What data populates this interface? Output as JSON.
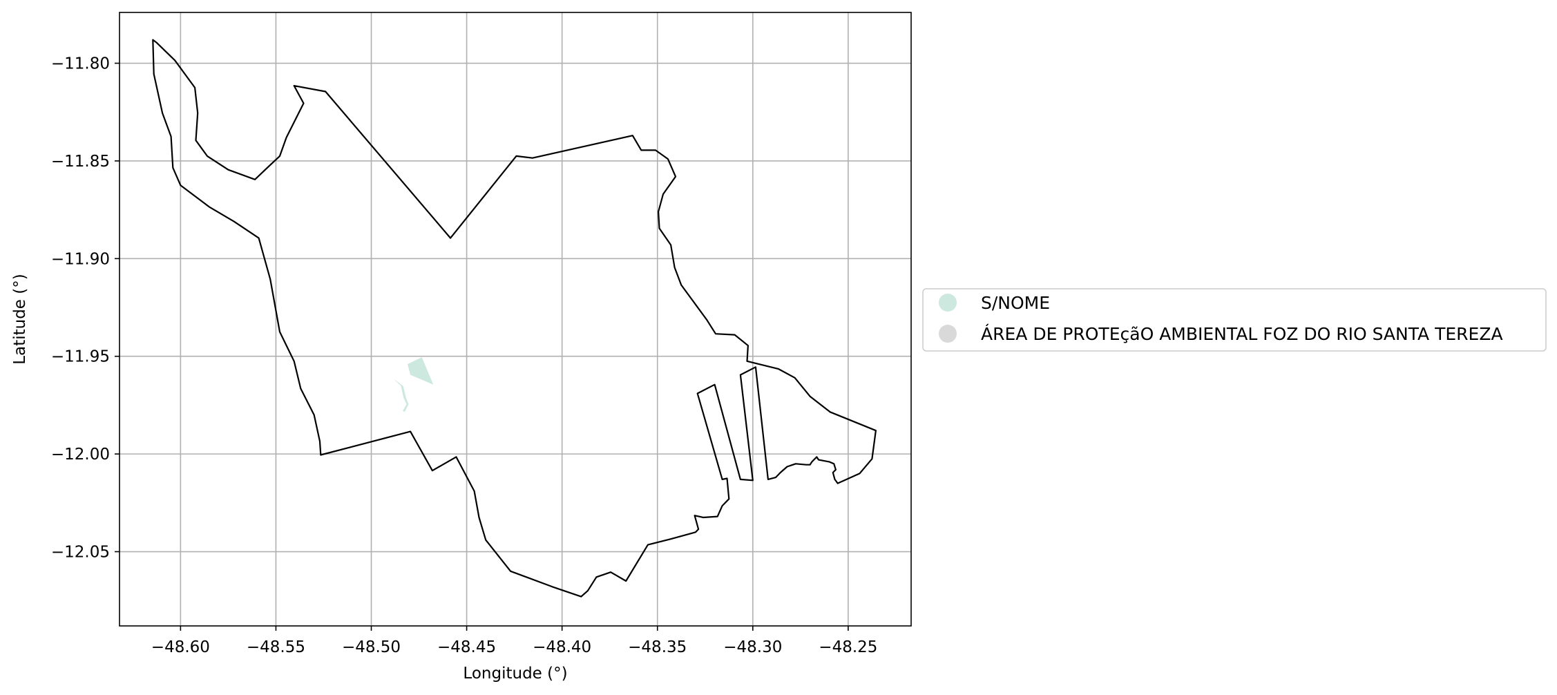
{
  "chart_data": {
    "type": "map",
    "xlabel": "Longitude (°)",
    "ylabel": "Latitude (°)",
    "xlim": [
      -48.632,
      -48.217
    ],
    "ylim": [
      -12.088,
      -11.774
    ],
    "grid": true,
    "xticks": [
      {
        "value": -48.6,
        "label": "−48.60"
      },
      {
        "value": -48.55,
        "label": "−48.55"
      },
      {
        "value": -48.5,
        "label": "−48.50"
      },
      {
        "value": -48.45,
        "label": "−48.45"
      },
      {
        "value": -48.4,
        "label": "−48.40"
      },
      {
        "value": -48.35,
        "label": "−48.35"
      },
      {
        "value": -48.3,
        "label": "−48.30"
      },
      {
        "value": -48.25,
        "label": "−48.25"
      }
    ],
    "yticks": [
      {
        "value": -11.8,
        "label": "−11.80"
      },
      {
        "value": -11.85,
        "label": "−11.85"
      },
      {
        "value": -11.9,
        "label": "−11.90"
      },
      {
        "value": -11.95,
        "label": "−11.95"
      },
      {
        "value": -12.0,
        "label": "−12.00"
      },
      {
        "value": -12.05,
        "label": "−12.05"
      }
    ],
    "legend": {
      "position": "center-right outside",
      "entries": [
        {
          "label": "S/NOME",
          "color": "#cde8df"
        },
        {
          "label": "ÁREA DE PROTEçãO AMBIENTAL FOZ DO RIO SANTA TEREZA",
          "color": "#d9d9d9"
        }
      ]
    },
    "layers": [
      {
        "name": "S/NOME",
        "fill": "#cde8df",
        "stroke": "none",
        "polygons": [
          [
            [
              -48.481,
              -11.954
            ],
            [
              -48.4735,
              -11.9505
            ],
            [
              -48.4675,
              -11.9645
            ],
            [
              -48.4795,
              -11.9595
            ]
          ],
          [
            [
              -48.488,
              -11.962
            ],
            [
              -48.4845,
              -11.965
            ],
            [
              -48.483,
              -11.9715
            ],
            [
              -48.4815,
              -11.9745
            ],
            [
              -48.4835,
              -11.978
            ],
            [
              -48.4825,
              -11.9785
            ],
            [
              -48.4805,
              -11.9745
            ],
            [
              -48.4818,
              -11.9712
            ],
            [
              -48.4833,
              -11.9652
            ],
            [
              -48.4868,
              -11.9627
            ]
          ]
        ]
      },
      {
        "name": "ÁREA DE PROTEçãO AMBIENTAL FOZ DO RIO SANTA TEREZA",
        "fill": "none",
        "stroke": "#000000",
        "outline": [
          [
            -48.6145,
            -11.788
          ],
          [
            -48.6125,
            -11.7895
          ],
          [
            -48.603,
            -11.7985
          ],
          [
            -48.5925,
            -11.8125
          ],
          [
            -48.591,
            -11.8255
          ],
          [
            -48.592,
            -11.8395
          ],
          [
            -48.586,
            -11.8475
          ],
          [
            -48.575,
            -11.8545
          ],
          [
            -48.561,
            -11.8595
          ],
          [
            -48.554,
            -11.853
          ],
          [
            -48.548,
            -11.8475
          ],
          [
            -48.5445,
            -11.838
          ],
          [
            -48.5355,
            -11.8205
          ],
          [
            -48.5405,
            -11.8115
          ],
          [
            -48.524,
            -11.8145
          ],
          [
            -48.4585,
            -11.8895
          ],
          [
            -48.424,
            -11.8475
          ],
          [
            -48.4155,
            -11.8485
          ],
          [
            -48.363,
            -11.837
          ],
          [
            -48.3585,
            -11.8445
          ],
          [
            -48.351,
            -11.8445
          ],
          [
            -48.3445,
            -11.849
          ],
          [
            -48.3405,
            -11.858
          ],
          [
            -48.347,
            -11.867
          ],
          [
            -48.3495,
            -11.876
          ],
          [
            -48.349,
            -11.8845
          ],
          [
            -48.343,
            -11.893
          ],
          [
            -48.341,
            -11.9045
          ],
          [
            -48.3375,
            -11.9135
          ],
          [
            -48.324,
            -11.9315
          ],
          [
            -48.3195,
            -11.9385
          ],
          [
            -48.3095,
            -11.939
          ],
          [
            -48.3025,
            -11.9445
          ],
          [
            -48.303,
            -11.9525
          ],
          [
            -48.2865,
            -11.9565
          ],
          [
            -48.278,
            -11.961
          ],
          [
            -48.27,
            -11.9705
          ],
          [
            -48.2595,
            -11.9785
          ],
          [
            -48.2355,
            -11.988
          ],
          [
            -48.2375,
            -12.0025
          ],
          [
            -48.244,
            -12.01
          ],
          [
            -48.2555,
            -12.015
          ],
          [
            -48.257,
            -12.013
          ],
          [
            -48.258,
            -12.0095
          ],
          [
            -48.2565,
            -12.008
          ],
          [
            -48.2575,
            -12.005
          ],
          [
            -48.26,
            -12.004
          ],
          [
            -48.2655,
            -12.003
          ],
          [
            -48.2665,
            -12.0015
          ],
          [
            -48.269,
            -12.004
          ],
          [
            -48.27,
            -12.0055
          ],
          [
            -48.272,
            -12.0055
          ],
          [
            -48.2775,
            -12.005
          ],
          [
            -48.282,
            -12.0065
          ],
          [
            -48.2855,
            -12.0095
          ],
          [
            -48.288,
            -12.012
          ],
          [
            -48.292,
            -12.013
          ],
          [
            -48.2985,
            -11.9555
          ],
          [
            -48.3065,
            -11.9595
          ],
          [
            -48.3,
            -12.0135
          ],
          [
            -48.3065,
            -12.013
          ],
          [
            -48.32,
            -11.9645
          ],
          [
            -48.329,
            -11.969
          ],
          [
            -48.316,
            -12.013
          ],
          [
            -48.3135,
            -12.0125
          ],
          [
            -48.3125,
            -12.023
          ],
          [
            -48.316,
            -12.0265
          ],
          [
            -48.3185,
            -12.032
          ],
          [
            -48.326,
            -12.0325
          ],
          [
            -48.3305,
            -12.0315
          ],
          [
            -48.3285,
            -12.0385
          ],
          [
            -48.33,
            -12.04
          ],
          [
            -48.343,
            -12.0435
          ],
          [
            -48.355,
            -12.0465
          ],
          [
            -48.3665,
            -12.065
          ],
          [
            -48.3745,
            -12.0605
          ],
          [
            -48.382,
            -12.063
          ],
          [
            -48.3865,
            -12.07
          ],
          [
            -48.39,
            -12.073
          ],
          [
            -48.405,
            -12.068
          ],
          [
            -48.427,
            -12.06
          ],
          [
            -48.44,
            -12.044
          ],
          [
            -48.4435,
            -12.0325
          ],
          [
            -48.446,
            -12.019
          ],
          [
            -48.4555,
            -12.0015
          ],
          [
            -48.468,
            -12.0085
          ],
          [
            -48.4795,
            -11.9885
          ],
          [
            -48.5265,
            -12.0005
          ],
          [
            -48.527,
            -11.9935
          ],
          [
            -48.53,
            -11.98
          ],
          [
            -48.537,
            -11.9665
          ],
          [
            -48.5405,
            -11.9525
          ],
          [
            -48.548,
            -11.9375
          ],
          [
            -48.553,
            -11.9105
          ],
          [
            -48.559,
            -11.8895
          ],
          [
            -48.572,
            -11.881
          ],
          [
            -48.585,
            -11.8735
          ],
          [
            -48.6,
            -11.8625
          ],
          [
            -48.604,
            -11.8535
          ],
          [
            -48.605,
            -11.8375
          ],
          [
            -48.6095,
            -11.8255
          ],
          [
            -48.614,
            -11.8055
          ],
          [
            -48.6145,
            -11.788
          ]
        ]
      }
    ]
  }
}
